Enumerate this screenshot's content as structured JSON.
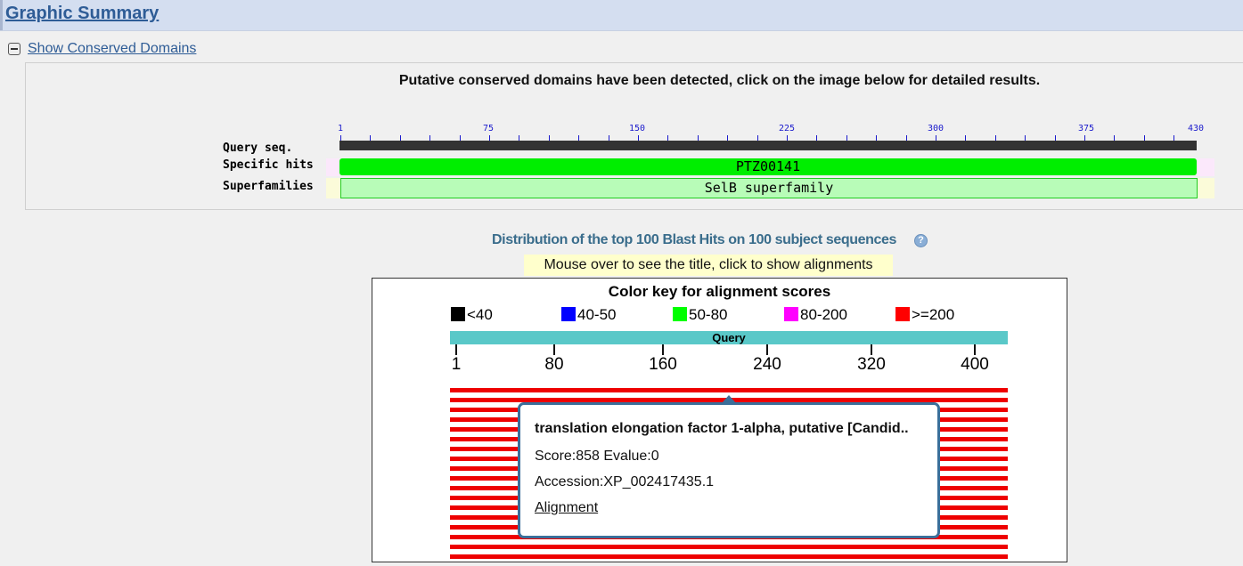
{
  "header": {
    "title": "Graphic Summary"
  },
  "conserved": {
    "toggle_label": "Show Conserved Domains",
    "message": "Putative conserved domains have been detected, click on the image below for detailed results.",
    "row_labels": [
      "Query seq.",
      "Specific hits",
      "Superfamilies"
    ],
    "ruler": [
      "1",
      "75",
      "150",
      "225",
      "300",
      "375",
      "430"
    ],
    "specific_hit": "PTZ00141",
    "superfamily": "SelB superfamily"
  },
  "distribution": {
    "title": "Distribution of the top 100 Blast Hits on 100 subject sequences",
    "hint": "Mouse over to see the title, click to show alignments",
    "colorkey_title": "Color key for alignment scores",
    "key": [
      {
        "label": "<40",
        "color": "#000000"
      },
      {
        "label": "40-50",
        "color": "#0000ff"
      },
      {
        "label": "50-80",
        "color": "#00ff00"
      },
      {
        "label": "80-200",
        "color": "#ff00ff"
      },
      {
        "label": ">=200",
        "color": "#ff0000"
      }
    ],
    "query_label": "Query",
    "axis": [
      "1",
      "80",
      "160",
      "240",
      "320",
      "400"
    ],
    "hit_color": "#ee0000"
  },
  "tooltip": {
    "title": "translation elongation factor 1-alpha, putative [Candid..",
    "score": "Score:858 Evalue:0",
    "accession": "Accession:XP_002417435.1",
    "link": "Alignment"
  }
}
